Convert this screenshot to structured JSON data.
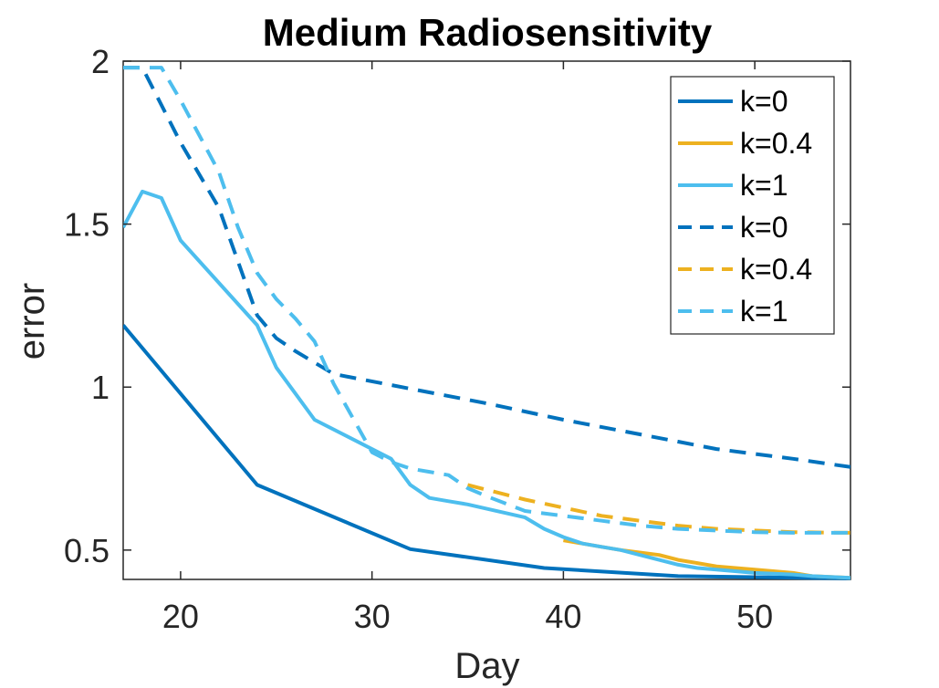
{
  "chart_data": {
    "type": "line",
    "title": "Medium Radiosensitivity",
    "xlabel": "Day",
    "ylabel": "error",
    "xlim": [
      17,
      55
    ],
    "ylim": [
      0.41,
      2.0
    ],
    "xticks": [
      20,
      30,
      40,
      50
    ],
    "yticks": [
      0.5,
      1,
      1.5,
      2
    ],
    "xtick_labels": [
      "20",
      "30",
      "40",
      "50"
    ],
    "ytick_labels": [
      "0.5",
      "1",
      "1.5",
      "2"
    ],
    "legend_position": "top-right",
    "series": [
      {
        "name": "k=0",
        "style": "solid",
        "color": "#0072BD",
        "x": [
          17,
          24,
          32,
          39,
          46,
          55
        ],
        "y": [
          1.19,
          0.7,
          0.503,
          0.445,
          0.42,
          0.413
        ]
      },
      {
        "name": "k=0.4",
        "style": "solid",
        "color": "#EDB120",
        "x": [
          40,
          41,
          42,
          43,
          45,
          46,
          47,
          48,
          50,
          52,
          53,
          55
        ],
        "y": [
          0.53,
          0.52,
          0.51,
          0.5,
          0.485,
          0.47,
          0.46,
          0.45,
          0.44,
          0.43,
          0.42,
          0.415
        ]
      },
      {
        "name": "k=1",
        "style": "solid",
        "color": "#4DBEEE",
        "x": [
          17,
          18,
          19,
          20,
          24,
          25,
          26,
          27,
          31,
          32,
          33,
          34,
          35,
          38,
          39,
          40,
          41,
          42,
          43,
          45,
          46,
          47,
          48,
          50,
          52,
          53,
          55
        ],
        "y": [
          1.49,
          1.6,
          1.58,
          1.45,
          1.19,
          1.06,
          0.98,
          0.9,
          0.78,
          0.7,
          0.66,
          0.65,
          0.64,
          0.6,
          0.565,
          0.54,
          0.52,
          0.51,
          0.5,
          0.47,
          0.455,
          0.445,
          0.44,
          0.43,
          0.425,
          0.42,
          0.415
        ]
      },
      {
        "name": "k=0",
        "style": "dashed",
        "color": "#0072BD",
        "x": [
          17,
          18,
          20,
          22,
          24,
          25,
          26,
          28,
          32,
          36,
          40,
          44,
          48,
          52,
          55
        ],
        "y": [
          1.98,
          1.98,
          1.75,
          1.55,
          1.22,
          1.15,
          1.11,
          1.04,
          0.995,
          0.95,
          0.9,
          0.855,
          0.81,
          0.78,
          0.755
        ]
      },
      {
        "name": "k=0.4",
        "style": "dashed",
        "color": "#EDB120",
        "x": [
          35,
          36,
          38,
          40,
          42,
          44,
          46,
          48,
          50,
          52,
          55
        ],
        "y": [
          0.7,
          0.685,
          0.655,
          0.63,
          0.605,
          0.59,
          0.575,
          0.565,
          0.56,
          0.555,
          0.553
        ]
      },
      {
        "name": "k=1",
        "style": "dashed",
        "color": "#4DBEEE",
        "x": [
          17,
          18,
          19,
          20,
          21,
          22,
          23,
          24,
          25,
          26,
          27,
          28,
          30,
          31,
          32,
          33,
          34,
          35,
          36,
          38,
          40,
          42,
          44,
          46,
          48,
          50,
          52,
          55
        ],
        "y": [
          1.98,
          1.98,
          1.98,
          1.88,
          1.77,
          1.66,
          1.49,
          1.35,
          1.27,
          1.21,
          1.14,
          1.01,
          0.8,
          0.77,
          0.75,
          0.74,
          0.73,
          0.69,
          0.665,
          0.62,
          0.605,
          0.59,
          0.575,
          0.565,
          0.56,
          0.555,
          0.553,
          0.553
        ]
      }
    ]
  }
}
